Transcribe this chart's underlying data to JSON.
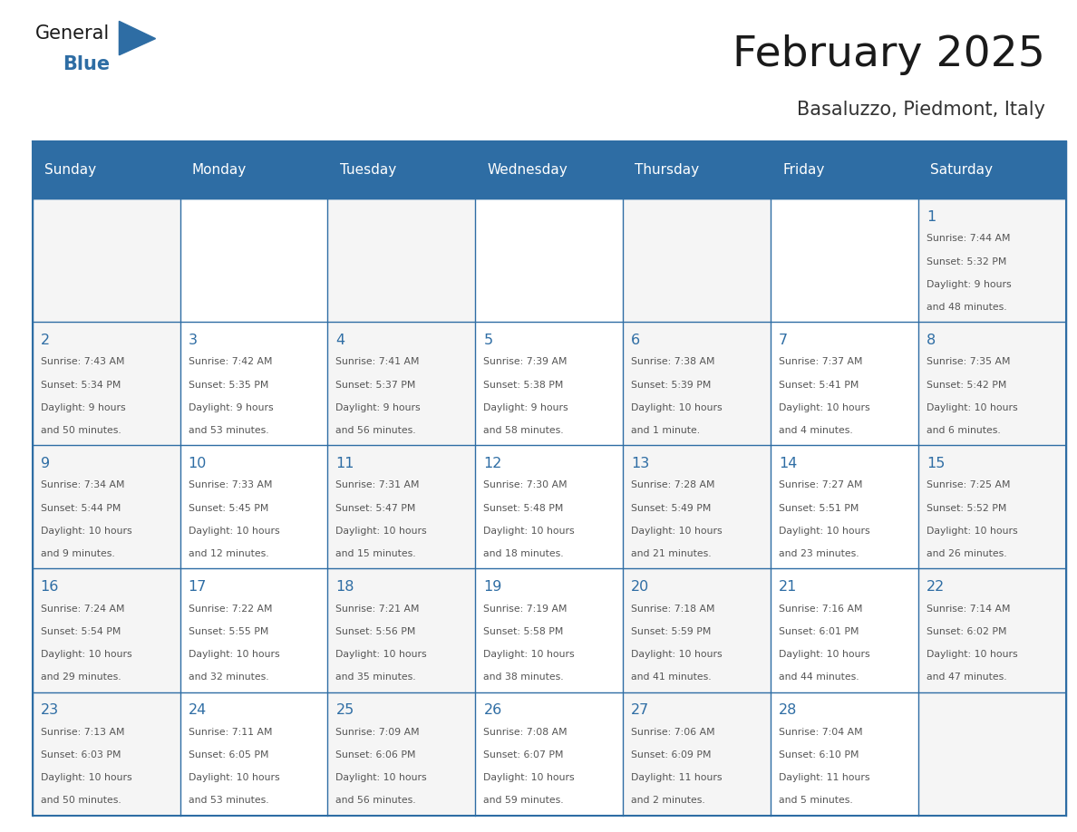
{
  "title": "February 2025",
  "subtitle": "Basaluzzo, Piedmont, Italy",
  "days_of_week": [
    "Sunday",
    "Monday",
    "Tuesday",
    "Wednesday",
    "Thursday",
    "Friday",
    "Saturday"
  ],
  "header_bg_color": "#2e6da4",
  "header_text_color": "#ffffff",
  "cell_bg_even": "#f5f5f5",
  "cell_bg_odd": "#ffffff",
  "border_color": "#2e6da4",
  "day_num_color": "#2e6da4",
  "text_color": "#555555",
  "title_color": "#1a1a1a",
  "subtitle_color": "#333333",
  "logo_general_color": "#1a1a1a",
  "logo_blue_color": "#2e6da4",
  "calendar_data": [
    [
      null,
      null,
      null,
      null,
      null,
      null,
      {
        "day": "1",
        "sunrise": "Sunrise: 7:44 AM",
        "sunset": "Sunset: 5:32 PM",
        "daylight_line1": "Daylight: 9 hours",
        "daylight_line2": "and 48 minutes."
      }
    ],
    [
      {
        "day": "2",
        "sunrise": "Sunrise: 7:43 AM",
        "sunset": "Sunset: 5:34 PM",
        "daylight_line1": "Daylight: 9 hours",
        "daylight_line2": "and 50 minutes."
      },
      {
        "day": "3",
        "sunrise": "Sunrise: 7:42 AM",
        "sunset": "Sunset: 5:35 PM",
        "daylight_line1": "Daylight: 9 hours",
        "daylight_line2": "and 53 minutes."
      },
      {
        "day": "4",
        "sunrise": "Sunrise: 7:41 AM",
        "sunset": "Sunset: 5:37 PM",
        "daylight_line1": "Daylight: 9 hours",
        "daylight_line2": "and 56 minutes."
      },
      {
        "day": "5",
        "sunrise": "Sunrise: 7:39 AM",
        "sunset": "Sunset: 5:38 PM",
        "daylight_line1": "Daylight: 9 hours",
        "daylight_line2": "and 58 minutes."
      },
      {
        "day": "6",
        "sunrise": "Sunrise: 7:38 AM",
        "sunset": "Sunset: 5:39 PM",
        "daylight_line1": "Daylight: 10 hours",
        "daylight_line2": "and 1 minute."
      },
      {
        "day": "7",
        "sunrise": "Sunrise: 7:37 AM",
        "sunset": "Sunset: 5:41 PM",
        "daylight_line1": "Daylight: 10 hours",
        "daylight_line2": "and 4 minutes."
      },
      {
        "day": "8",
        "sunrise": "Sunrise: 7:35 AM",
        "sunset": "Sunset: 5:42 PM",
        "daylight_line1": "Daylight: 10 hours",
        "daylight_line2": "and 6 minutes."
      }
    ],
    [
      {
        "day": "9",
        "sunrise": "Sunrise: 7:34 AM",
        "sunset": "Sunset: 5:44 PM",
        "daylight_line1": "Daylight: 10 hours",
        "daylight_line2": "and 9 minutes."
      },
      {
        "day": "10",
        "sunrise": "Sunrise: 7:33 AM",
        "sunset": "Sunset: 5:45 PM",
        "daylight_line1": "Daylight: 10 hours",
        "daylight_line2": "and 12 minutes."
      },
      {
        "day": "11",
        "sunrise": "Sunrise: 7:31 AM",
        "sunset": "Sunset: 5:47 PM",
        "daylight_line1": "Daylight: 10 hours",
        "daylight_line2": "and 15 minutes."
      },
      {
        "day": "12",
        "sunrise": "Sunrise: 7:30 AM",
        "sunset": "Sunset: 5:48 PM",
        "daylight_line1": "Daylight: 10 hours",
        "daylight_line2": "and 18 minutes."
      },
      {
        "day": "13",
        "sunrise": "Sunrise: 7:28 AM",
        "sunset": "Sunset: 5:49 PM",
        "daylight_line1": "Daylight: 10 hours",
        "daylight_line2": "and 21 minutes."
      },
      {
        "day": "14",
        "sunrise": "Sunrise: 7:27 AM",
        "sunset": "Sunset: 5:51 PM",
        "daylight_line1": "Daylight: 10 hours",
        "daylight_line2": "and 23 minutes."
      },
      {
        "day": "15",
        "sunrise": "Sunrise: 7:25 AM",
        "sunset": "Sunset: 5:52 PM",
        "daylight_line1": "Daylight: 10 hours",
        "daylight_line2": "and 26 minutes."
      }
    ],
    [
      {
        "day": "16",
        "sunrise": "Sunrise: 7:24 AM",
        "sunset": "Sunset: 5:54 PM",
        "daylight_line1": "Daylight: 10 hours",
        "daylight_line2": "and 29 minutes."
      },
      {
        "day": "17",
        "sunrise": "Sunrise: 7:22 AM",
        "sunset": "Sunset: 5:55 PM",
        "daylight_line1": "Daylight: 10 hours",
        "daylight_line2": "and 32 minutes."
      },
      {
        "day": "18",
        "sunrise": "Sunrise: 7:21 AM",
        "sunset": "Sunset: 5:56 PM",
        "daylight_line1": "Daylight: 10 hours",
        "daylight_line2": "and 35 minutes."
      },
      {
        "day": "19",
        "sunrise": "Sunrise: 7:19 AM",
        "sunset": "Sunset: 5:58 PM",
        "daylight_line1": "Daylight: 10 hours",
        "daylight_line2": "and 38 minutes."
      },
      {
        "day": "20",
        "sunrise": "Sunrise: 7:18 AM",
        "sunset": "Sunset: 5:59 PM",
        "daylight_line1": "Daylight: 10 hours",
        "daylight_line2": "and 41 minutes."
      },
      {
        "day": "21",
        "sunrise": "Sunrise: 7:16 AM",
        "sunset": "Sunset: 6:01 PM",
        "daylight_line1": "Daylight: 10 hours",
        "daylight_line2": "and 44 minutes."
      },
      {
        "day": "22",
        "sunrise": "Sunrise: 7:14 AM",
        "sunset": "Sunset: 6:02 PM",
        "daylight_line1": "Daylight: 10 hours",
        "daylight_line2": "and 47 minutes."
      }
    ],
    [
      {
        "day": "23",
        "sunrise": "Sunrise: 7:13 AM",
        "sunset": "Sunset: 6:03 PM",
        "daylight_line1": "Daylight: 10 hours",
        "daylight_line2": "and 50 minutes."
      },
      {
        "day": "24",
        "sunrise": "Sunrise: 7:11 AM",
        "sunset": "Sunset: 6:05 PM",
        "daylight_line1": "Daylight: 10 hours",
        "daylight_line2": "and 53 minutes."
      },
      {
        "day": "25",
        "sunrise": "Sunrise: 7:09 AM",
        "sunset": "Sunset: 6:06 PM",
        "daylight_line1": "Daylight: 10 hours",
        "daylight_line2": "and 56 minutes."
      },
      {
        "day": "26",
        "sunrise": "Sunrise: 7:08 AM",
        "sunset": "Sunset: 6:07 PM",
        "daylight_line1": "Daylight: 10 hours",
        "daylight_line2": "and 59 minutes."
      },
      {
        "day": "27",
        "sunrise": "Sunrise: 7:06 AM",
        "sunset": "Sunset: 6:09 PM",
        "daylight_line1": "Daylight: 11 hours",
        "daylight_line2": "and 2 minutes."
      },
      {
        "day": "28",
        "sunrise": "Sunrise: 7:04 AM",
        "sunset": "Sunset: 6:10 PM",
        "daylight_line1": "Daylight: 11 hours",
        "daylight_line2": "and 5 minutes."
      },
      null
    ]
  ]
}
